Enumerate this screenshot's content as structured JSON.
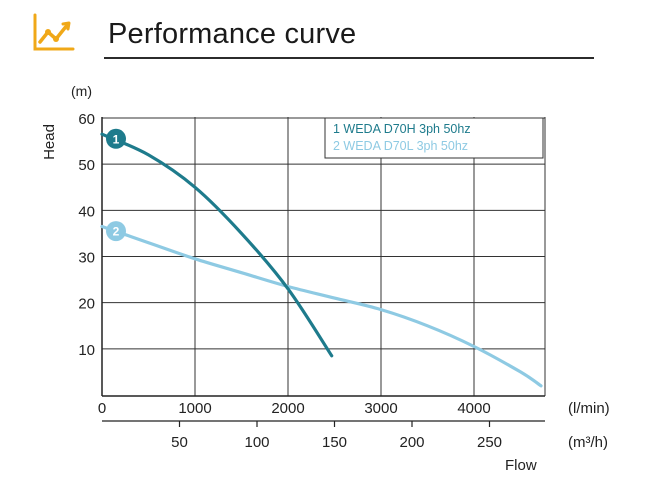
{
  "header": {
    "title": "Performance curve",
    "icon": "performance-curve-icon",
    "icon_color": "#f0a818"
  },
  "chart_data": {
    "type": "line",
    "ylabel": "Head",
    "yunit": "(m)",
    "xlabel": "Flow",
    "x_unit_primary": "(l/min)",
    "x_unit_secondary": "(m³/h)",
    "ylim": [
      0,
      60
    ],
    "xlim": [
      0,
      4800
    ],
    "y_ticks": [
      10,
      20,
      30,
      40,
      50,
      60
    ],
    "x_ticks_primary": [
      0,
      1000,
      2000,
      3000,
      4000
    ],
    "x_ticks_secondary": [
      50,
      100,
      150,
      200,
      250
    ],
    "grid": true,
    "legend_position": "top-right",
    "series": [
      {
        "name": "1 WEDA D70H 3ph 50hz",
        "marker_label": "1",
        "color": "#1e7b8c",
        "x": [
          0,
          500,
          1000,
          1500,
          2000,
          2470
        ],
        "y": [
          56.5,
          52,
          45,
          35,
          23,
          8.5
        ]
      },
      {
        "name": "2 WEDA D70L 3ph 50hz",
        "marker_label": "2",
        "color": "#8ecae3",
        "x": [
          0,
          500,
          1000,
          1500,
          2000,
          2500,
          3000,
          3500,
          4000,
          4500,
          4720
        ],
        "y": [
          36.5,
          33,
          29.5,
          26.5,
          23.5,
          21,
          18.5,
          15,
          10.5,
          5,
          2
        ]
      }
    ]
  }
}
